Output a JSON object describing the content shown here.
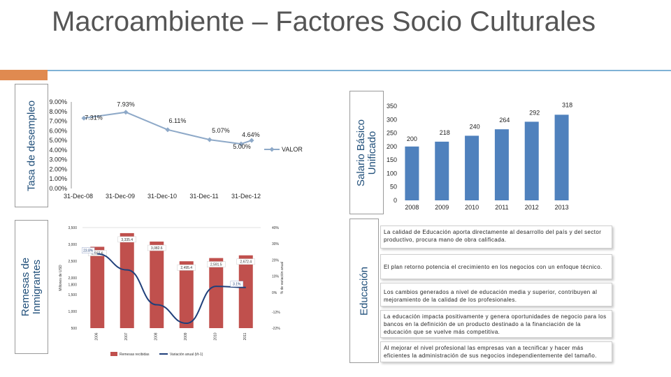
{
  "title": "Macroambiente – Factores Socio Culturales",
  "labels": {
    "unemployment": "Tasa de desempleo",
    "salary": "Salario Básico Unificado",
    "remittances": "Remesas de Inmigrantes",
    "education": "Educación"
  },
  "colors": {
    "accent": "#E08A50",
    "line": "#7FB2D6",
    "bar": "#4F81BD",
    "remit_bar": "#C0504D",
    "label_text": "#1F4E79"
  },
  "chart_data": [
    {
      "type": "line",
      "categories": [
        "31-Dec-08",
        "31-Dec-09",
        "31-Dec-10",
        "31-Dec-11",
        "31-Dec-12"
      ],
      "series": [
        {
          "name": "VALOR",
          "points": [
            {
              "x": "2008-12-31",
              "y": 7.31,
              "label": "7.31%"
            },
            {
              "x": "2009-12-31",
              "y": 7.93,
              "label": "7.93%"
            },
            {
              "x": "2010-12-31",
              "y": 6.11,
              "label": "6.11%"
            },
            {
              "x": "2011-12-31",
              "y": 5.07,
              "label": "5.07%"
            },
            {
              "x": "2012-09-30",
              "y": 4.64,
              "label": "4.64%"
            },
            {
              "x": "2012-12-31",
              "y": 5.0,
              "label": "5.00%"
            }
          ]
        }
      ],
      "yticks": [
        "0.00%",
        "1.00%",
        "2.00%",
        "3.00%",
        "4.00%",
        "5.00%",
        "6.00%",
        "7.00%",
        "8.00%",
        "9.00%"
      ],
      "ylim": [
        0,
        9
      ],
      "legend": "right",
      "grid": false
    },
    {
      "type": "bar",
      "categories": [
        "2008",
        "2009",
        "2010",
        "2011",
        "2012",
        "2013"
      ],
      "values": [
        200,
        218,
        240,
        264,
        292,
        318
      ],
      "yticks": [
        "0",
        "50",
        "100",
        "150",
        "200",
        "250",
        "300",
        "350"
      ],
      "ylim": [
        0,
        350
      ],
      "grid": false
    },
    {
      "type": "bar",
      "categories": [
        "2006",
        "2007",
        "2008",
        "2009",
        "2010",
        "2011"
      ],
      "values": [
        2927.6,
        3335.4,
        3082.6,
        2495.4,
        2591.5,
        2672.4
      ],
      "variation": [
        23.8,
        13.9,
        -7.6,
        -19.0,
        3.8,
        3.1
      ],
      "yticks": [
        "500",
        "1,000",
        "1,500",
        "1,800",
        "2,000",
        "2,500",
        "3,000",
        "3,500"
      ],
      "yticks_right": [
        "-22%",
        "-12%",
        "0%",
        "10%",
        "20%",
        "30%",
        "40%"
      ],
      "ylim": [
        500,
        3500
      ],
      "y2lim": [
        -22,
        40
      ],
      "ylabel": "Millones de USD",
      "y2label": "% de variación anual",
      "legend": [
        "Remesas recibidas",
        "Variación anual (t/t-1)"
      ],
      "legend_position": "bottom"
    }
  ],
  "education": [
    "La calidad de Educación aporta directamente al desarrollo del país y del sector productivo, procura mano de obra calificada.",
    "El plan retorno potencia el crecimiento en los negocios con un enfoque técnico.",
    "Los cambios generados a nivel de educación media y superior, contribuyen al mejoramiento de la calidad de los profesionales.",
    "La educación impacta positivamente y genera oportunidades de negocio para los bancos en la definición de un producto destinado a la financiación de la educación que se vuelve más competitiva.",
    "Al mejorar el nivel profesional las empresas van a tecnificar y hacer más eficientes la administración de sus negocios independientemente del tamaño."
  ]
}
